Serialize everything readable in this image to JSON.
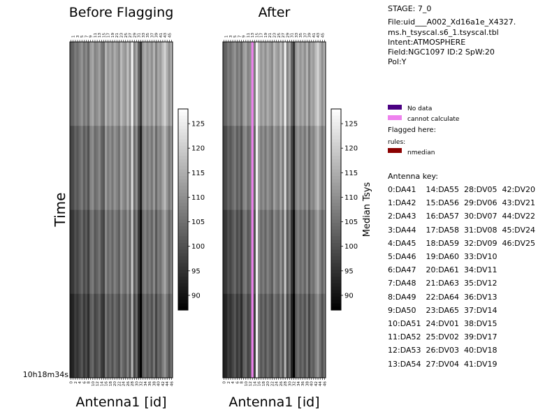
{
  "chart_data": [
    {
      "type": "heatmap",
      "title": "Before Flagging",
      "xlabel": "Antenna1 [id]",
      "ylabel": "Time",
      "x_range": [
        0,
        46
      ],
      "time_label": "10h18m34s",
      "top_tick_labels": [
        "1",
        "3",
        "5",
        "7",
        "9",
        "11",
        "13",
        "15",
        "17",
        "19",
        "21",
        "23",
        "25",
        "27",
        "29",
        "31",
        "33",
        "35",
        "37",
        "39",
        "41",
        "43",
        "45"
      ],
      "bottom_tick_labels": [
        "0",
        "2",
        "4",
        "6",
        "8",
        "10",
        "12",
        "14",
        "16",
        "18",
        "20",
        "22",
        "24",
        "26",
        "28",
        "30",
        "32",
        "34",
        "36",
        "38",
        "40",
        "42",
        "44",
        "46"
      ],
      "time_rows": 4,
      "row_offsets": [
        4,
        0,
        -3,
        -6
      ],
      "antenna_values": [
        98,
        99,
        103,
        101,
        104,
        107,
        102,
        105,
        100,
        108,
        110,
        104,
        106,
        109,
        103,
        101,
        112,
        107,
        110,
        106,
        111,
        108,
        105,
        113,
        109,
        107,
        114,
        106,
        122,
        104,
        110,
        99,
        92,
        108,
        111,
        107,
        110,
        106,
        112,
        104,
        110,
        108,
        113,
        117,
        111,
        106,
        112
      ],
      "colorbar": {
        "label": "",
        "min": 87,
        "max": 128,
        "ticks": [
          90,
          95,
          100,
          105,
          110,
          115,
          120,
          125
        ]
      }
    },
    {
      "type": "heatmap",
      "title": "After",
      "xlabel": "Antenna1 [id]",
      "ylabel": "",
      "x_range": [
        0,
        46
      ],
      "top_tick_labels": [
        "1",
        "3",
        "5",
        "7",
        "9",
        "11",
        "13",
        "15",
        "17",
        "19",
        "21",
        "23",
        "25",
        "27",
        "29",
        "31",
        "33",
        "35",
        "37",
        "39",
        "41",
        "43",
        "45"
      ],
      "bottom_tick_labels": [
        "0",
        "2",
        "4",
        "6",
        "8",
        "10",
        "12",
        "14",
        "16",
        "18",
        "20",
        "22",
        "24",
        "26",
        "28",
        "30",
        "32",
        "34",
        "36",
        "38",
        "40",
        "42",
        "44",
        "46"
      ],
      "time_rows": 4,
      "row_offsets": [
        4,
        0,
        -3,
        -6
      ],
      "antenna_values": [
        98,
        99,
        103,
        101,
        104,
        107,
        102,
        105,
        100,
        108,
        110,
        104,
        106,
        109,
        103,
        101,
        112,
        107,
        110,
        106,
        111,
        108,
        105,
        113,
        109,
        107,
        114,
        106,
        122,
        104,
        110,
        99,
        92,
        108,
        111,
        107,
        110,
        106,
        112,
        104,
        110,
        108,
        113,
        117,
        111,
        106,
        112
      ],
      "cannot_calculate_antennas": [
        13
      ],
      "bright_antennas": [
        15
      ],
      "colorbar": {
        "label": "Median Tsys",
        "min": 87,
        "max": 128,
        "ticks": [
          90,
          95,
          100,
          105,
          110,
          115,
          120,
          125
        ]
      }
    }
  ],
  "info": {
    "stage": "STAGE: 7_0",
    "file_line1": "File:uid___A002_Xd16a1e_X4327.",
    "file_line2": "ms.h_tsyscal.s6_1.tsyscal.tbl",
    "intent": "Intent:ATMOSPHERE",
    "field": "Field:NGC1097 ID:2 SpW:20",
    "pol": "Pol:Y"
  },
  "legend": {
    "no_data": "No data",
    "cannot_calculate": "cannot calculate",
    "flagged_here": "Flagged here:",
    "rules": "rules:",
    "nmedian": "nmedian",
    "colors": {
      "no_data": "#4b0082",
      "cannot_calculate": "#ee82ee",
      "nmedian": "#8b0000"
    }
  },
  "antenna_key": {
    "title": "Antenna key:",
    "lines": [
      "0:DA41    14:DA55  28:DV05  42:DV20",
      "1:DA42    15:DA56  29:DV06  43:DV21",
      "2:DA43    16:DA57  30:DV07  44:DV22",
      "3:DA44    17:DA58  31:DV08  45:DV24",
      "4:DA45    18:DA59  32:DV09  46:DV25",
      "5:DA46    19:DA60  33:DV10",
      "6:DA47    20:DA61  34:DV11",
      "7:DA48    21:DA63  35:DV12",
      "8:DA49    22:DA64  36:DV13",
      "9:DA50    23:DA65  37:DV14",
      "10:DA51  24:DV01  38:DV15",
      "11:DA52  25:DV02  39:DV17",
      "12:DA53  26:DV03  40:DV18",
      "13:DA54  27:DV04  41:DV19"
    ]
  }
}
